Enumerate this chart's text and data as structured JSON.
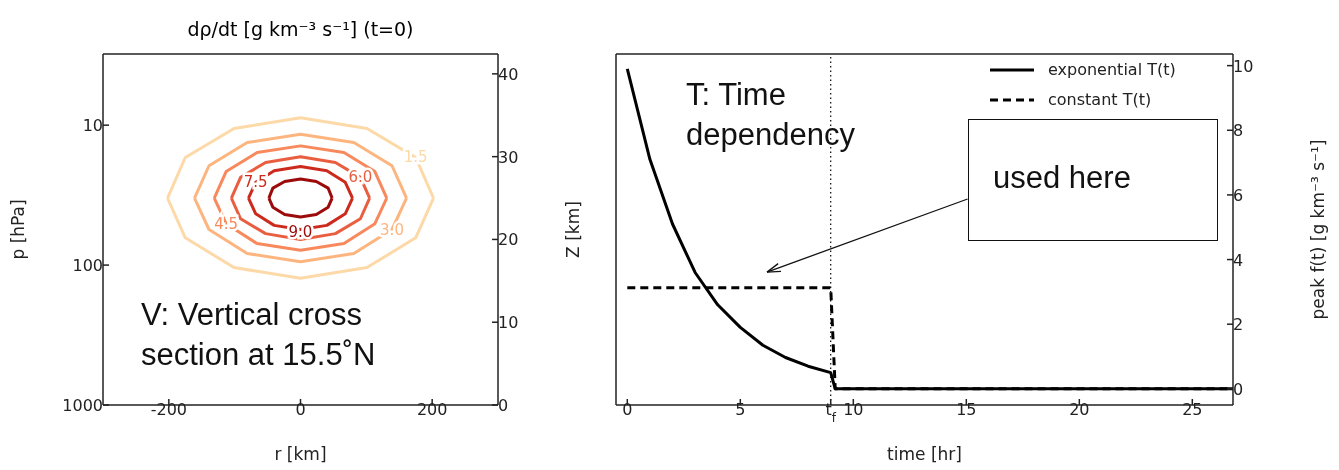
{
  "chart_data": [
    {
      "type": "line",
      "title": "dρ/dt [g km⁻³ s⁻¹] (t=0)",
      "xlabel": "r [km]",
      "ylabel": "Z [km]",
      "y2label": "p [hPa]",
      "xlim": [
        -300,
        300
      ],
      "xticks": [
        -200,
        0,
        200
      ],
      "ylim": [
        0,
        42.4
      ],
      "yticks": [
        0,
        10,
        20,
        30,
        40
      ],
      "log": "y2",
      "y2lim": [
        1000,
        3.1
      ],
      "y2ticks": [
        10,
        100,
        1000
      ],
      "grid": false,
      "legend": false,
      "marker": "none",
      "annotations": [
        "V: Vertical cross section at 15.5˚N"
      ],
      "series": [
        {
          "name": "1.5",
          "color": "#fdd9a8",
          "x": [
            -202,
            -175,
            -101,
            0,
            101,
            175,
            202
          ],
          "values": [
            25,
            29.9,
            33.4,
            34.7,
            33.4,
            29.9,
            25
          ]
        },
        {
          "color": "#fdd9a8",
          "x": [
            -202,
            -175,
            -101,
            0,
            101,
            175,
            202
          ],
          "values": [
            25,
            20.2,
            16.6,
            15.3,
            16.6,
            20.2,
            25
          ]
        },
        {
          "color": "#fdb57f",
          "x": [
            -161,
            -139,
            -81,
            0,
            81,
            139,
            161
          ],
          "values": [
            25,
            28.9,
            31.7,
            32.7,
            31.7,
            28.9,
            25
          ]
        },
        {
          "name": "3.0",
          "color": "#fdb57f",
          "x": [
            -161,
            -139,
            -81,
            0,
            81,
            139,
            161
          ],
          "values": [
            25,
            21.2,
            18.3,
            17.3,
            18.3,
            21.2,
            25
          ]
        },
        {
          "color": "#f8895c",
          "x": [
            -131,
            -113,
            -66,
            0,
            66,
            113,
            131
          ],
          "values": [
            25,
            28.2,
            30.5,
            31.3,
            30.5,
            28.2,
            25
          ]
        },
        {
          "name": "4.5",
          "color": "#f8895c",
          "x": [
            -131,
            -113,
            -66,
            0,
            66,
            113,
            131
          ],
          "values": [
            25,
            21.9,
            19.5,
            18.7,
            19.5,
            21.9,
            25
          ]
        },
        {
          "name": "6.0",
          "color": "#ea5e40",
          "x": [
            -105,
            -91,
            -53,
            0,
            53,
            91,
            105
          ],
          "values": [
            25,
            27.5,
            29.3,
            30,
            29.3,
            27.5,
            25
          ]
        },
        {
          "color": "#ea5e40",
          "x": [
            -105,
            -91,
            -53,
            0,
            53,
            91,
            105
          ],
          "values": [
            25,
            22.5,
            20.7,
            20,
            20.7,
            22.5,
            25
          ]
        },
        {
          "name": "7.5",
          "color": "#cc2a1c",
          "x": [
            -79,
            -68,
            -40,
            0,
            40,
            68,
            79
          ],
          "values": [
            25,
            26.9,
            28.3,
            28.8,
            28.3,
            26.9,
            25
          ]
        },
        {
          "color": "#cc2a1c",
          "x": [
            -79,
            -68,
            -40,
            0,
            40,
            68,
            79
          ],
          "values": [
            25,
            23.1,
            21.7,
            21.2,
            21.7,
            23.1,
            25
          ]
        },
        {
          "color": "#9c0a0a",
          "x": [
            -48,
            -42,
            -24,
            0,
            24,
            42,
            48
          ],
          "values": [
            25,
            26.2,
            27,
            27.3,
            27,
            26.2,
            25
          ]
        },
        {
          "name": "9.0",
          "color": "#9c0a0a",
          "x": [
            -48,
            -42,
            -24,
            0,
            24,
            42,
            48
          ],
          "values": [
            25,
            23.9,
            23,
            22.7,
            23,
            23.9,
            25
          ]
        }
      ]
    },
    {
      "type": "line",
      "xlabel": "time [hr]",
      "y2label": "peak f(t) [g km⁻³ s⁻¹]",
      "xlim": [
        -0.5,
        26.8
      ],
      "xticks": [
        0,
        5,
        {
          "value": 9,
          "label": "t$_{f}$"
        },
        10,
        15,
        20,
        25
      ],
      "y2lim": [
        -0.5,
        10.36
      ],
      "y2ticks": [
        0,
        2,
        4,
        6,
        8,
        10
      ],
      "grid": false,
      "legend": "top right",
      "marker": "none",
      "ref_lines": [
        {
          "axis": "x",
          "value": 9,
          "label": null,
          "color": "#000000",
          "line_style": "dotted"
        }
      ],
      "annotations": [
        "T: Time dependency",
        "used here"
      ],
      "series": [
        {
          "name": "exponential T(t)",
          "color": "#000000",
          "axis": "y2",
          "line_style": "solid",
          "x": [
            0,
            1,
            2,
            3,
            4,
            5,
            6,
            7,
            8,
            9,
            9.2,
            26.8
          ],
          "values": [
            9.9,
            7.1,
            5.1,
            3.6,
            2.6,
            1.9,
            1.35,
            0.97,
            0.7,
            0.5,
            0,
            0
          ]
        },
        {
          "name": "constant T(t)",
          "color": "#000000",
          "axis": "y2",
          "line_style": "dashed",
          "x": [
            0,
            9,
            9.2,
            26.8
          ],
          "values": [
            3.13,
            3.13,
            0,
            0
          ]
        }
      ]
    }
  ]
}
